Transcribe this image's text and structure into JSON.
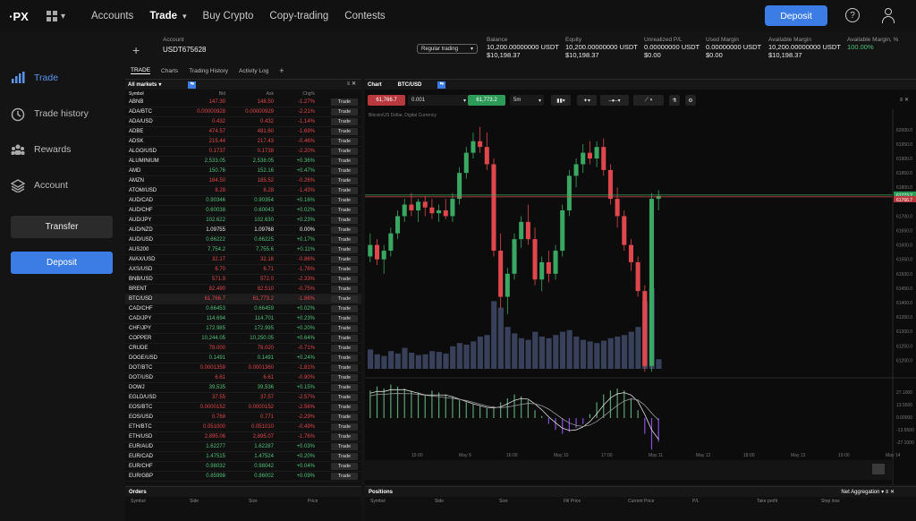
{
  "topbar": {
    "logo": "·PX",
    "nav": [
      "Accounts",
      "Trade",
      "Buy Crypto",
      "Copy-trading",
      "Contests"
    ],
    "active_nav": "Trade",
    "deposit_label": "Deposit",
    "help_glyph": "?"
  },
  "sidebar": {
    "items": [
      {
        "label": "Trade",
        "icon": "bar-chart-icon"
      },
      {
        "label": "Trade history",
        "icon": "clock-icon"
      },
      {
        "label": "Rewards",
        "icon": "users-icon"
      },
      {
        "label": "Account",
        "icon": "layers-icon"
      }
    ],
    "transfer_label": "Transfer",
    "deposit_label": "Deposit"
  },
  "account": {
    "label": "Account",
    "id": "USDT675628",
    "trading_mode": "Regular trading",
    "stats": [
      {
        "label": "Balance",
        "v1": "10,200.00000000 USDT",
        "v2": "$10,198.37"
      },
      {
        "label": "Equity",
        "v1": "10,200.00000000 USDT",
        "v2": "$10,198.37"
      },
      {
        "label": "Unrealized P/L",
        "v1": "0.00000000 USDT",
        "v2": "$0.00"
      },
      {
        "label": "Used Margin",
        "v1": "0.00000000 USDT",
        "v2": "$0.00"
      },
      {
        "label": "Available Margin",
        "v1": "10,200.00000000 USDT",
        "v2": "$10,198.37"
      },
      {
        "label": "Available Margin, %",
        "v1": "100.00%",
        "v2": ""
      }
    ]
  },
  "tabs": [
    "TRADE",
    "Charts",
    "Trading History",
    "Activity Log"
  ],
  "markets": {
    "title": "All markets",
    "columns": [
      "Symbol",
      "Bid",
      "Ask",
      "Chg%"
    ],
    "trade_label": "Trade",
    "rows": [
      [
        "ABNB",
        "147.30",
        "148.50",
        "-1.27%"
      ],
      [
        "ADA/BTC",
        "0.00000928",
        "0.00000929",
        "-2.21%"
      ],
      [
        "ADA/USD",
        "0.432",
        "0.432",
        "-1.14%"
      ],
      [
        "ADBE",
        "474.57",
        "481.60",
        "-1.69%"
      ],
      [
        "ADSK",
        "215.44",
        "217.43",
        "-0.46%"
      ],
      [
        "ALGO/USD",
        "0.1737",
        "0.1738",
        "-2.20%"
      ],
      [
        "ALUMINIUM",
        "2,533.05",
        "2,538.05",
        "+0.36%"
      ],
      [
        "AMD",
        "150.76",
        "152.16",
        "+0.47%"
      ],
      [
        "AMZN",
        "184.50",
        "185.52",
        "-0.26%"
      ],
      [
        "ATOM/USD",
        "8.28",
        "8.28",
        "-1.43%"
      ],
      [
        "AUD/CAD",
        "0.90346",
        "0.90354",
        "+0.16%"
      ],
      [
        "AUD/CHF",
        "0.60038",
        "0.60043",
        "+0.02%"
      ],
      [
        "AUD/JPY",
        "102.622",
        "102.630",
        "+0.23%"
      ],
      [
        "AUD/NZD",
        "1.09755",
        "1.09768",
        "0.00%"
      ],
      [
        "AUD/USD",
        "0.66222",
        "0.66225",
        "+0.17%"
      ],
      [
        "AUS200",
        "7,754.2",
        "7,755.6",
        "+0.11%"
      ],
      [
        "AVAX/USD",
        "32.17",
        "32.18",
        "-0.86%"
      ],
      [
        "AXS/USD",
        "6.70",
        "6.71",
        "-1.76%"
      ],
      [
        "BNB/USD",
        "571.9",
        "572.0",
        "-2.33%"
      ],
      [
        "BRENT",
        "82.490",
        "82.510",
        "-0.75%"
      ],
      [
        "BTC/USD",
        "61,766.7",
        "61,773.2",
        "-1.86%"
      ],
      [
        "CAD/CHF",
        "0.66453",
        "0.66459",
        "+0.02%"
      ],
      [
        "CAD/JPY",
        "114.694",
        "114.701",
        "+0.23%"
      ],
      [
        "CHF/JPY",
        "172.985",
        "172.995",
        "+0.20%"
      ],
      [
        "COPPER",
        "10,244.05",
        "10,250.05",
        "+0.64%"
      ],
      [
        "CRUDE",
        "78.000",
        "78.020",
        "-0.71%"
      ],
      [
        "DOGE/USD",
        "0.1491",
        "0.1491",
        "+0.24%"
      ],
      [
        "DOT/BTC",
        "0.0001359",
        "0.0001360",
        "-1.81%"
      ],
      [
        "DOT/USD",
        "6.61",
        "6.61",
        "-0.90%"
      ],
      [
        "DOWJ",
        "39,535",
        "39,536",
        "+0.15%"
      ],
      [
        "EGLD/USD",
        "37.55",
        "37.57",
        "-2.57%"
      ],
      [
        "EOS/BTC",
        "0.0000152",
        "0.0000152",
        "-2.56%"
      ],
      [
        "EOS/USD",
        "0.769",
        "0.771",
        "-2.29%"
      ],
      [
        "ETH/BTC",
        "0.051000",
        "0.051010",
        "-0.49%"
      ],
      [
        "ETH/USD",
        "2,895.06",
        "2,895.07",
        "-1.76%"
      ],
      [
        "EUR/AUD",
        "1.62277",
        "1.62287",
        "+0.03%"
      ],
      [
        "EUR/CAD",
        "1.47515",
        "1.47524",
        "+0.20%"
      ],
      [
        "EUR/CHF",
        "0.98032",
        "0.98042",
        "+0.04%"
      ],
      [
        "EUR/GBP",
        "0.85998",
        "0.86002",
        "+0.09%"
      ]
    ]
  },
  "orders": {
    "title": "Orders",
    "columns": [
      "Symbol",
      "Side",
      "Size",
      "Price"
    ]
  },
  "positions": {
    "title": "Positions",
    "aggregation": "Net Aggregation",
    "columns": [
      "Symbol",
      "Side",
      "Size",
      "Fill Price",
      "Current Price",
      "P/L",
      "Take profit",
      "Stop loss"
    ]
  },
  "chart": {
    "title": "Chart",
    "symbol": "BTC/USD",
    "sell_price": "61,766.7",
    "buy_price": "61,773.2",
    "quantity": "0.001",
    "timeframe": "5m",
    "description": "Bitcoin/US Dollar, Digital Currency",
    "price_labels": [
      "62000.0",
      "61950.0",
      "61900.0",
      "61850.0",
      "61800.0",
      "61773.2",
      "61766.7",
      "61700.0",
      "61650.0",
      "61600.0",
      "61550.0",
      "61500.0",
      "61450.0",
      "61400.0",
      "61350.0",
      "61300.0",
      "61250.0",
      "61200.0"
    ],
    "osc_labels": [
      "27.1000",
      "13.5500",
      "0.00000",
      "-13.5500",
      "-27.1000"
    ],
    "time_labels": [
      "15:00",
      "May 9",
      "16:00",
      "May 10",
      "17:00",
      "May 11",
      "May 12",
      "18:00",
      "May 13",
      "19:00",
      "May 14"
    ],
    "colors": {
      "up": "#3aa763",
      "down": "#e0474c",
      "volume": "#38405a",
      "osc_pos": "#5aa374",
      "osc_neg": "#8a4de0"
    }
  },
  "chart_data": {
    "type": "candlestick",
    "title": "Bitcoin/US Dollar, Digital Currency",
    "ohlc": [
      [
        61560,
        61640,
        61540,
        61600
      ],
      [
        61600,
        61620,
        61530,
        61550
      ],
      [
        61550,
        61600,
        61500,
        61580
      ],
      [
        61580,
        61660,
        61560,
        61640
      ],
      [
        61640,
        61720,
        61620,
        61700
      ],
      [
        61700,
        61760,
        61680,
        61740
      ],
      [
        61740,
        61780,
        61700,
        61720
      ],
      [
        61720,
        61760,
        61680,
        61750
      ],
      [
        61750,
        61770,
        61700,
        61730
      ],
      [
        61730,
        61760,
        61690,
        61710
      ],
      [
        61710,
        61740,
        61680,
        61720
      ],
      [
        61720,
        61760,
        61690,
        61700
      ],
      [
        61700,
        61780,
        61680,
        61760
      ],
      [
        61760,
        61870,
        61740,
        61850
      ],
      [
        61850,
        61940,
        61830,
        61920
      ],
      [
        61920,
        61990,
        61900,
        61960
      ],
      [
        61960,
        62010,
        61920,
        61940
      ],
      [
        61940,
        61990,
        61860,
        61880
      ],
      [
        61880,
        61900,
        61560,
        61580
      ],
      [
        61580,
        61640,
        61380,
        61420
      ],
      [
        61420,
        61520,
        61360,
        61500
      ],
      [
        61500,
        61640,
        61480,
        61620
      ],
      [
        61620,
        61700,
        61590,
        61680
      ],
      [
        61680,
        61740,
        61600,
        61620
      ],
      [
        61620,
        61660,
        61460,
        61480
      ],
      [
        61480,
        61560,
        61440,
        61540
      ],
      [
        61540,
        61580,
        61470,
        61500
      ],
      [
        61500,
        61600,
        61480,
        61580
      ],
      [
        61580,
        61740,
        61560,
        61720
      ],
      [
        61720,
        61860,
        61700,
        61840
      ],
      [
        61840,
        61900,
        61800,
        61880
      ],
      [
        61880,
        61950,
        61850,
        61920
      ],
      [
        61920,
        61960,
        61880,
        61900
      ],
      [
        61900,
        61960,
        61870,
        61940
      ],
      [
        61940,
        61970,
        61840,
        61860
      ],
      [
        61860,
        61880,
        61740,
        61760
      ],
      [
        61760,
        61800,
        61660,
        61700
      ],
      [
        61700,
        61720,
        61580,
        61600
      ],
      [
        61600,
        61620,
        61510,
        61540
      ],
      [
        61540,
        61560,
        61420,
        61440
      ],
      [
        61440,
        61460,
        61160,
        61180
      ],
      [
        61180,
        61780,
        61160,
        61760
      ],
      [
        61760,
        61790,
        61720,
        61770
      ]
    ],
    "volume": [
      120,
      90,
      80,
      110,
      95,
      130,
      100,
      85,
      90,
      110,
      105,
      95,
      140,
      160,
      150,
      170,
      200,
      210,
      420,
      380,
      260,
      220,
      190,
      180,
      230,
      200,
      190,
      210,
      230,
      240,
      200,
      180,
      170,
      160,
      175,
      190,
      200,
      210,
      230,
      260,
      420,
      500,
      60
    ],
    "oscillator": [
      14,
      16,
      15,
      17,
      16,
      15,
      14,
      13,
      12,
      14,
      13,
      12,
      11,
      9,
      8,
      7,
      6,
      5,
      6,
      8,
      10,
      12,
      11,
      9,
      4,
      1,
      -3,
      -6,
      -8,
      -7,
      -5,
      -3,
      2,
      8,
      12,
      14,
      15,
      14,
      10,
      4,
      -8,
      -16,
      -12
    ],
    "ylim": [
      61170,
      62040
    ]
  }
}
